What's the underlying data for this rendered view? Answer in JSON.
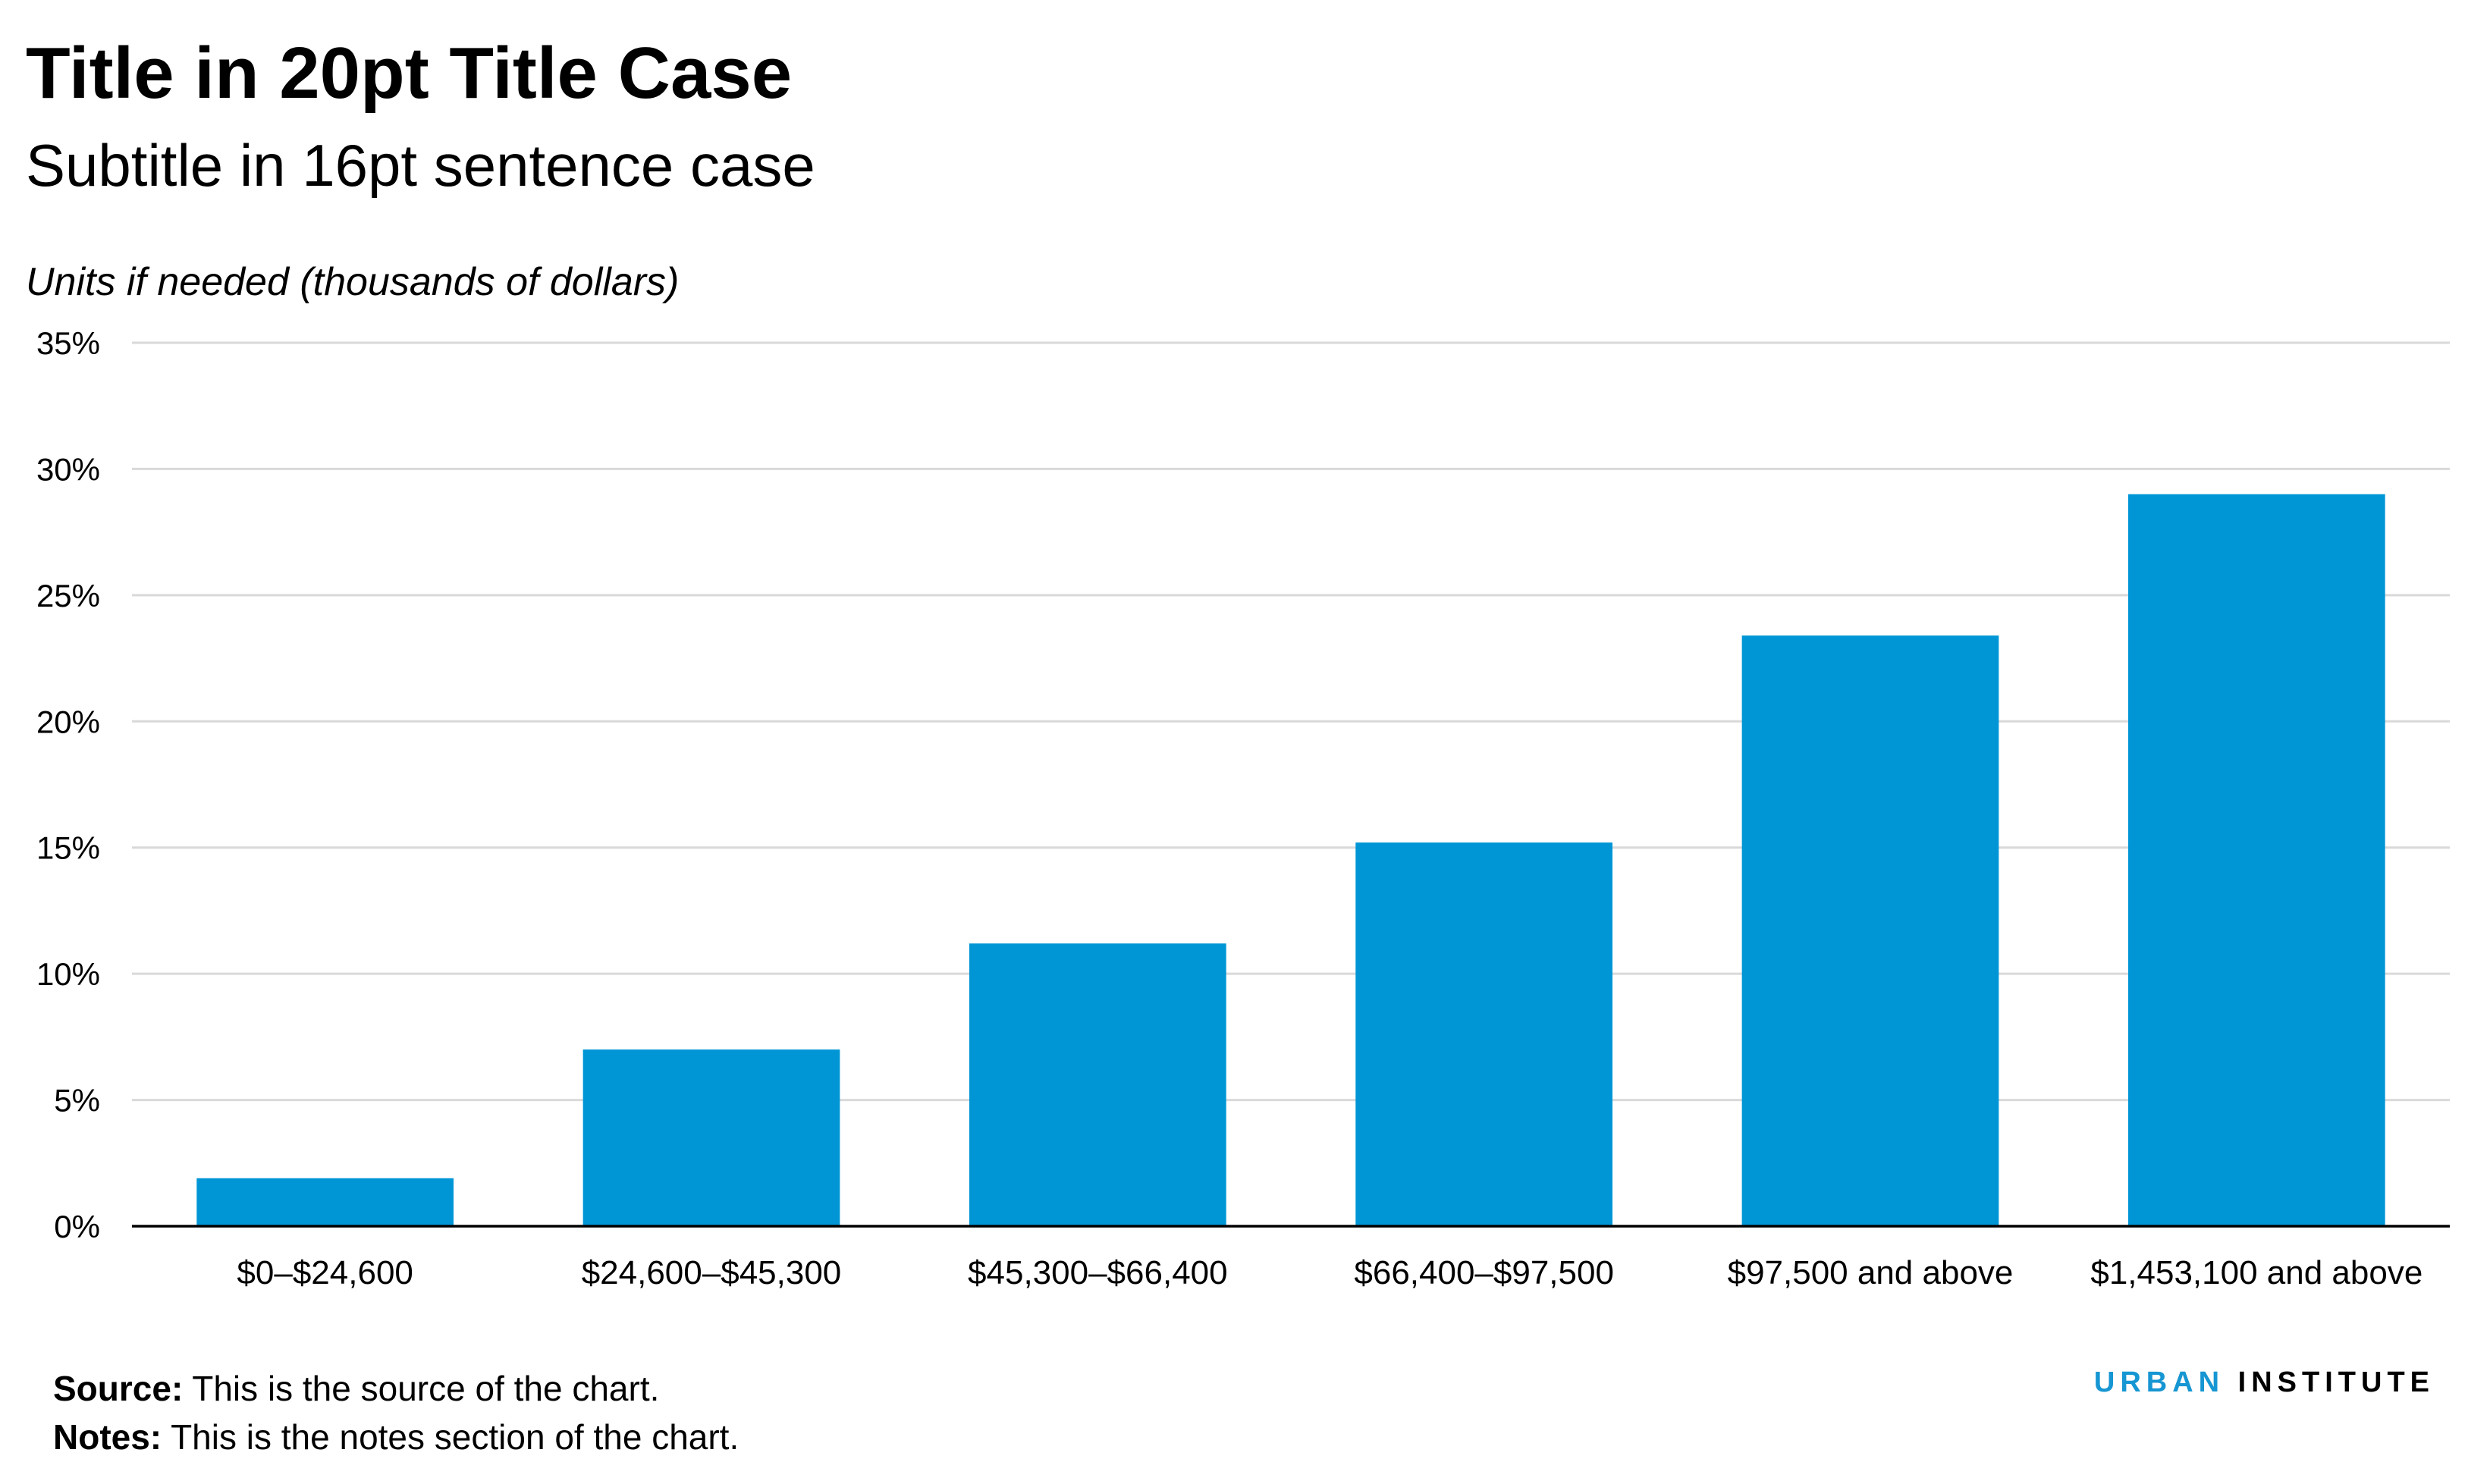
{
  "title": "Title in 20pt Title Case",
  "subtitle": "Subtitle in 16pt sentence case",
  "units": "Units if needed (thousands of dollars)",
  "footer": {
    "source_label": "Source:",
    "source_text": " This is the source of the chart.",
    "notes_label": "Notes:",
    "notes_text": " This is the notes section of the chart."
  },
  "logo": {
    "word1": "URBAN",
    "word2": "INSTITUTE",
    "word1_color": "#1696d2",
    "word2_color": "#000000"
  },
  "colors": {
    "bar": "#0096d6",
    "grid": "#d9d9d9",
    "axis": "#000000"
  },
  "chart_data": {
    "type": "bar",
    "categories": [
      "$0–$24,600",
      "$24,600–$45,300",
      "$45,300–$66,400",
      "$66,400–$97,500",
      "$97,500 and above",
      "$1,453,100 and above"
    ],
    "values": [
      1.9,
      7.0,
      11.2,
      15.2,
      23.4,
      29.0
    ],
    "ylim": [
      0,
      35
    ],
    "yticks": [
      0,
      5,
      10,
      15,
      20,
      25,
      30,
      35
    ],
    "ytick_labels": [
      "0%",
      "5%",
      "10%",
      "15%",
      "20%",
      "25%",
      "30%",
      "35%"
    ],
    "grid": true,
    "legend": "none"
  }
}
